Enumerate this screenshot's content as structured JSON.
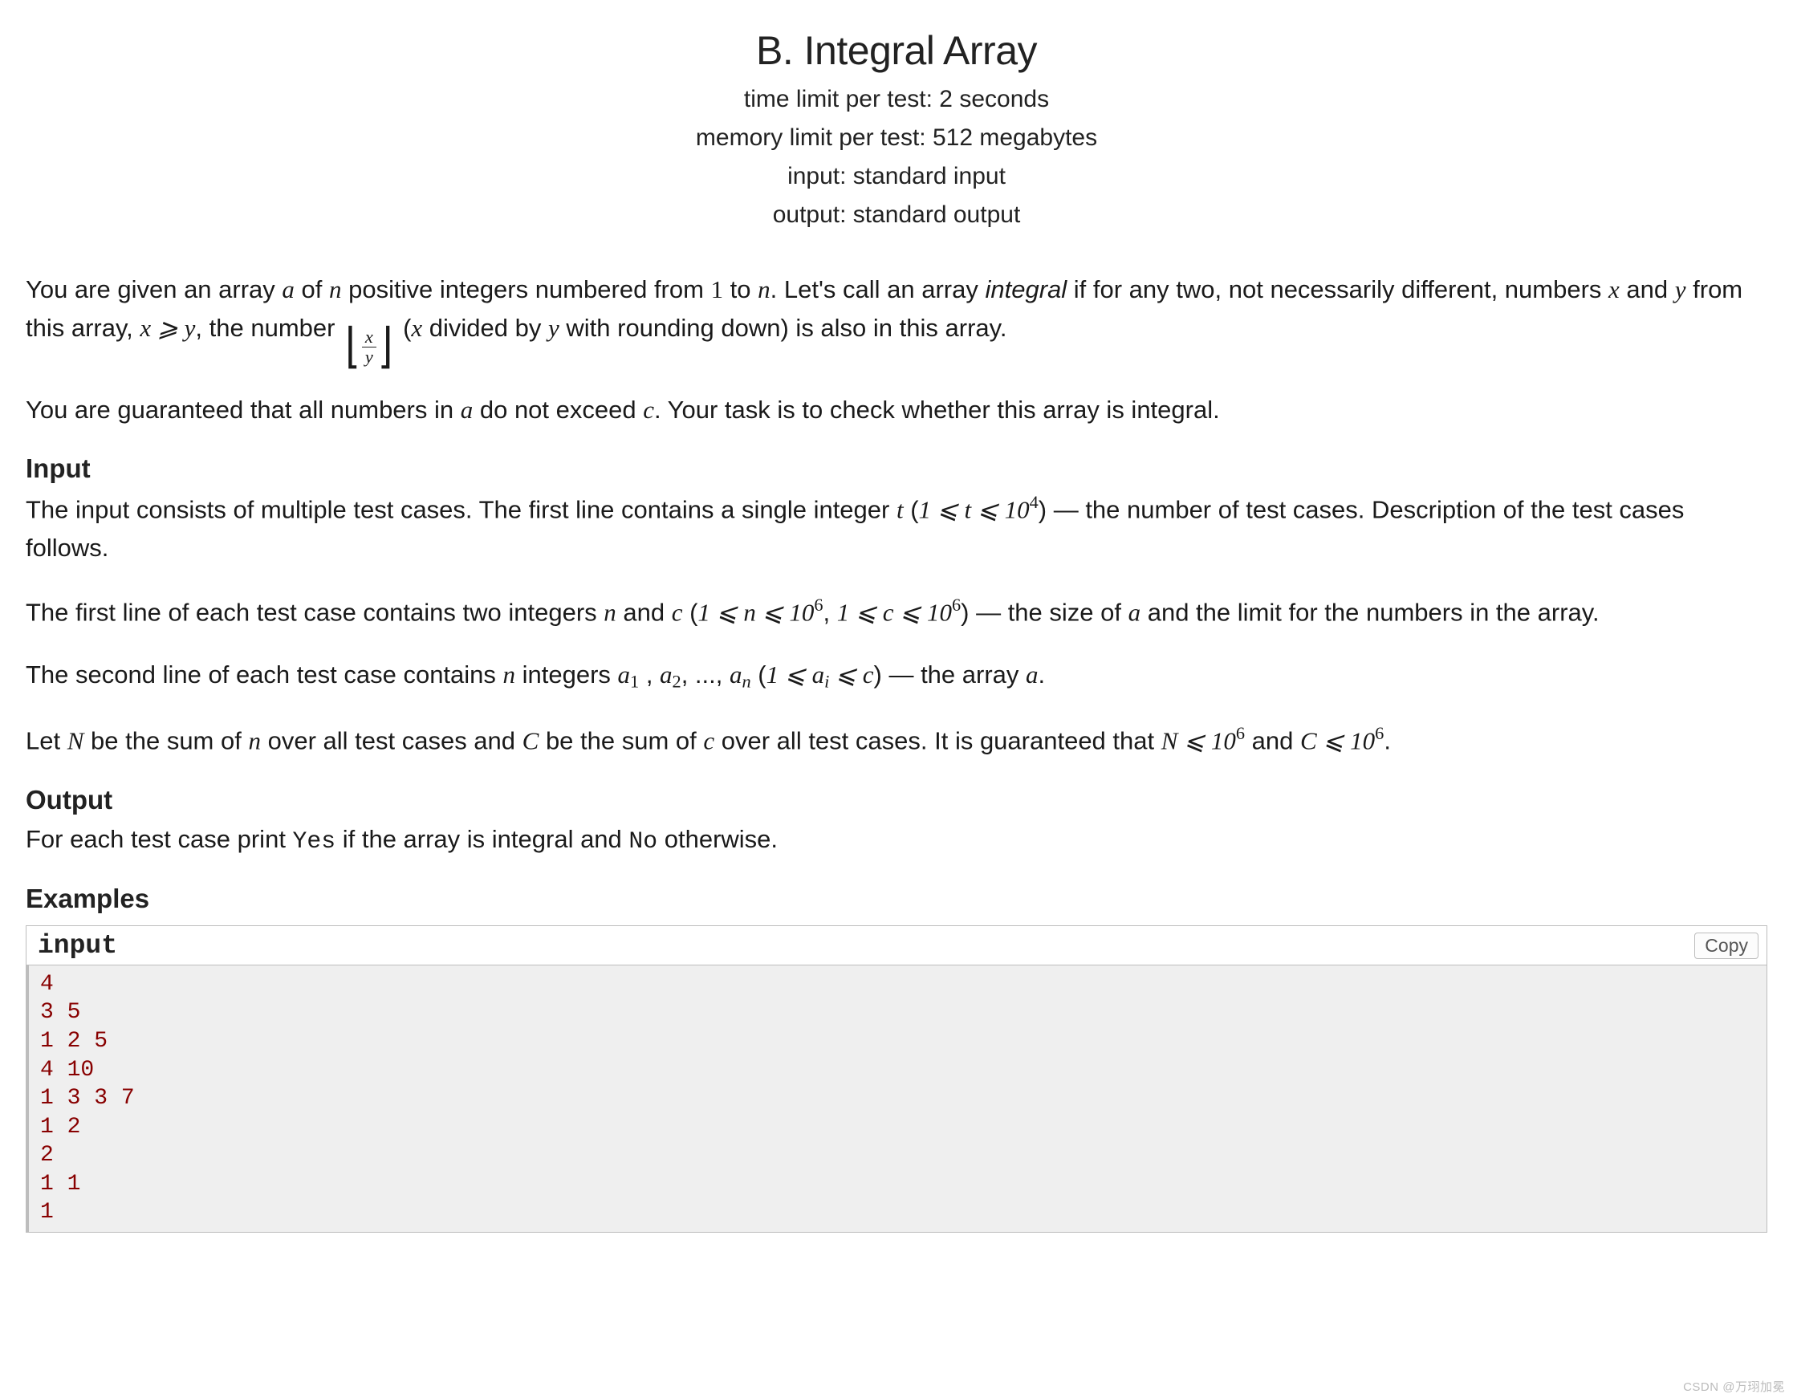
{
  "problem": {
    "title": "B. Integral Array",
    "meta": {
      "time_limit": "time limit per test: 2 seconds",
      "memory_limit": "memory limit per test: 512 megabytes",
      "input": "input: standard input",
      "output": "output: standard output"
    },
    "statement": {
      "p1_a": "You are given an array ",
      "p1_b": " of ",
      "p1_c": " positive integers numbered from ",
      "p1_d": " to ",
      "p1_e": ". Let's call an array ",
      "p1_integral": "integral",
      "p1_f": " if for any two, not necessarily different, numbers ",
      "p1_g": " and ",
      "p1_h": " from this array, ",
      "p1_i": ", the number ",
      "p1_j": " (",
      "p1_k": " divided by ",
      "p1_l": " with rounding down) is also in this array.",
      "p2_a": "You are guaranteed that all numbers in ",
      "p2_b": " do not exceed ",
      "p2_c": ". Your task is to check whether this array is integral."
    },
    "input_section": {
      "heading": "Input",
      "p1_a": "The input consists of multiple test cases. The first line contains a single integer ",
      "p1_b": " (",
      "p1_c": ") — the number of test cases. Description of the test cases follows.",
      "p2_a": "The first line of each test case contains two integers ",
      "p2_b": " and ",
      "p2_c": " (",
      "p2_d": ", ",
      "p2_e": ") — the size of ",
      "p2_f": " and the limit for the numbers in the array.",
      "p3_a": "The second line of each test case contains ",
      "p3_b": " integers ",
      "p3_c": " , ",
      "p3_d": ", ..., ",
      "p3_e": " (",
      "p3_f": ") — the array ",
      "p3_g": ".",
      "p4_a": "Let ",
      "p4_b": " be the sum of ",
      "p4_c": " over all test cases and ",
      "p4_d": " be the sum of ",
      "p4_e": " over all test cases. It is guaranteed that ",
      "p4_f": " and ",
      "p4_g": "."
    },
    "output_section": {
      "heading": "Output",
      "p1_a": "For each test case print ",
      "p1_yes": "Yes",
      "p1_b": " if the array is integral and ",
      "p1_no": "No",
      "p1_c": " otherwise."
    },
    "examples": {
      "heading": "Examples",
      "input_label": "input",
      "copy_label": "Copy",
      "input_data": "4\n3 5\n1 2 5\n4 10\n1 3 3 7\n1 2\n2\n1 1\n1"
    },
    "math": {
      "a": "a",
      "n": "n",
      "one": "1",
      "x": "x",
      "y": "y",
      "c": "c",
      "t": "t",
      "N": "N",
      "C": "C",
      "x_ge_y": "x ⩾ y",
      "t_range": "1 ⩽ t ⩽ 10",
      "t_range_sup": "4",
      "n_range": "1 ⩽ n ⩽ 10",
      "n_range_sup": "6",
      "c_range": "1 ⩽ c ⩽ 10",
      "c_range_sup": "6",
      "ai_range_a": "1 ⩽ a",
      "ai_range_sub": "i",
      "ai_range_b": " ⩽ c",
      "N_bound": "N ⩽ 10",
      "N_bound_sup": "6",
      "C_bound": "C ⩽ 10",
      "C_bound_sup": "6",
      "a_sub1": "a",
      "sub1": "1",
      "a_sub2": "a",
      "sub2": "2",
      "a_subn": "a",
      "subn": "n"
    }
  },
  "watermark": "CSDN @万珝加冕"
}
